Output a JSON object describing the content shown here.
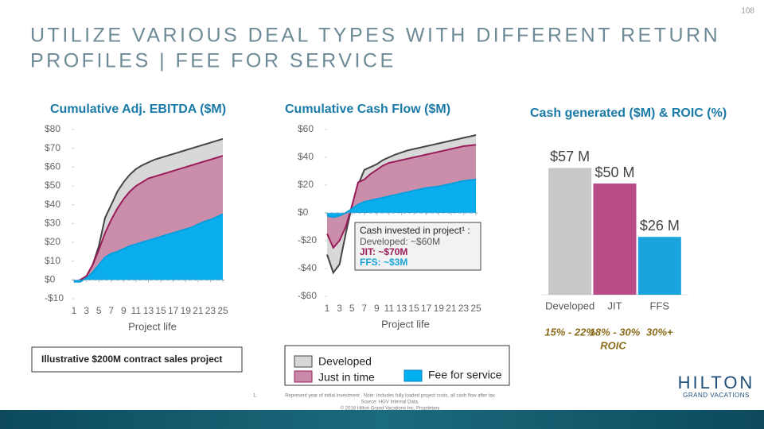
{
  "page": {
    "number": "108",
    "title_lines": [
      "UTILIZE VARIOUS DEAL TYPES WITH DIFFERENT RETURN",
      "PROFILES | FEE FOR SERVICE"
    ],
    "note": "Illustrative $200M contract sales project",
    "footnote": {
      "marker": "1.",
      "lines": [
        "Represent year of initial investment . Note: Includes fully loaded project costs, all cash flow after tax",
        "Source: HGV Internal Data.",
        "© 2018 Hilton Grand Vacations Inc. Proprietary"
      ]
    },
    "logo": {
      "name": "HILTON",
      "tagline": "GRAND VACATIONS"
    }
  },
  "chart_data": [
    {
      "type": "area",
      "title": "Cumulative Adj. EBITDA ($M)",
      "x_label": "Project life",
      "x": [
        1,
        2,
        3,
        4,
        5,
        6,
        7,
        8,
        9,
        10,
        11,
        12,
        13,
        14,
        15,
        16,
        17,
        18,
        19,
        20,
        21,
        22,
        23,
        24,
        25
      ],
      "xlim": [
        1,
        25
      ],
      "xticks": [
        1,
        3,
        5,
        7,
        9,
        11,
        13,
        15,
        17,
        19,
        21,
        23,
        25
      ],
      "ylim": [
        -10,
        80
      ],
      "yticks": [
        {
          "value": -10,
          "label": "-$10"
        },
        {
          "value": 0,
          "label": "$0"
        },
        {
          "value": 10,
          "label": "$10"
        },
        {
          "value": 20,
          "label": "$20"
        },
        {
          "value": 30,
          "label": "$30"
        },
        {
          "value": 40,
          "label": "$40"
        },
        {
          "value": 50,
          "label": "$50"
        },
        {
          "value": 60,
          "label": "$60"
        },
        {
          "value": 70,
          "label": "$70"
        },
        {
          "value": 80,
          "label": "$80"
        }
      ],
      "series": [
        {
          "name": "Developed",
          "color": "#d6d6d6",
          "line_color": "#444444",
          "values": [
            -1,
            0,
            2,
            8,
            18,
            33,
            40,
            47,
            52,
            56,
            59,
            61,
            62.5,
            64,
            65,
            66,
            67,
            68,
            69,
            70,
            71,
            72,
            73,
            74,
            75
          ]
        },
        {
          "name": "Just in time",
          "color": "#c98aa9",
          "line_color": "#9b1c5a",
          "values": [
            -1,
            0,
            2,
            8,
            16,
            25,
            32,
            38,
            43,
            47,
            50,
            52,
            54,
            55,
            56,
            57,
            58,
            59,
            60,
            61,
            62,
            63,
            64,
            65,
            66
          ]
        },
        {
          "name": "Fee for service",
          "color": "#00b0f0",
          "line_color": "#00a0e0",
          "values": [
            -1,
            -1,
            1,
            4,
            8,
            12,
            14,
            15,
            16.5,
            18,
            19,
            20,
            21,
            22,
            23,
            24,
            25,
            26,
            27,
            28,
            29.5,
            31,
            32,
            33.5,
            35
          ]
        }
      ]
    },
    {
      "type": "area",
      "title": "Cumulative Cash Flow ($M)",
      "x_label": "Project life",
      "x": [
        1,
        2,
        3,
        4,
        5,
        6,
        7,
        8,
        9,
        10,
        11,
        12,
        13,
        14,
        15,
        16,
        17,
        18,
        19,
        20,
        21,
        22,
        23,
        24,
        25
      ],
      "xlim": [
        1,
        25
      ],
      "xticks": [
        1,
        3,
        5,
        7,
        9,
        11,
        13,
        15,
        17,
        19,
        21,
        23,
        25
      ],
      "ylim": [
        -60,
        60
      ],
      "yticks": [
        {
          "value": -60,
          "label": "-$60"
        },
        {
          "value": -40,
          "label": "-$40"
        },
        {
          "value": -20,
          "label": "-$20"
        },
        {
          "value": 0,
          "label": "$0"
        },
        {
          "value": 20,
          "label": "$20"
        },
        {
          "value": 40,
          "label": "$40"
        },
        {
          "value": 60,
          "label": "$60"
        }
      ],
      "series": [
        {
          "name": "Developed",
          "color": "#d6d6d6",
          "line_color": "#444444",
          "values": [
            -30,
            -43,
            -37,
            -15,
            5,
            20,
            31,
            33,
            35,
            38,
            40,
            42,
            43.5,
            45,
            46,
            47,
            48,
            49,
            50,
            51,
            52,
            53,
            54,
            55,
            56
          ]
        },
        {
          "name": "Just in time",
          "color": "#c98aa9",
          "line_color": "#9b1c5a",
          "values": [
            -15,
            -25,
            -20,
            -10,
            5,
            22,
            24,
            28,
            31,
            34,
            36,
            37,
            38,
            39,
            40,
            41,
            42,
            43,
            44,
            45,
            46,
            47,
            48,
            48.5,
            49
          ]
        },
        {
          "name": "Fee for service",
          "color": "#00b0f0",
          "line_color": "#00a0e0",
          "values": [
            -2,
            -3,
            -2,
            0,
            3,
            6,
            8,
            9,
            10,
            11,
            12,
            13,
            14,
            15,
            16,
            17,
            18,
            18.5,
            19,
            20,
            21,
            22,
            23,
            23.5,
            24
          ]
        }
      ],
      "annotation": {
        "title": "Cash invested in project¹ :",
        "lines": [
          {
            "text": "Developed: ~$60M",
            "color": "#555555"
          },
          {
            "text": "JIT: ~$70M",
            "color": "#9b1c5a"
          },
          {
            "text": "FFS: ~$3M",
            "color": "#1aa3dc"
          }
        ]
      }
    },
    {
      "type": "bar",
      "title": "Cash generated ($M) & ROIC (%)",
      "categories": [
        "Developed",
        "JIT",
        "FFS"
      ],
      "values": [
        57,
        50,
        26
      ],
      "value_labels": [
        "$57 M",
        "$50 M",
        "$26 M"
      ],
      "colors": [
        "#c8c8c8",
        "#b94b87",
        "#1aa3dc"
      ],
      "roic_labels": [
        "15% - 22%",
        "18% - 30%",
        "30%+"
      ],
      "roic_title": "ROIC"
    }
  ]
}
